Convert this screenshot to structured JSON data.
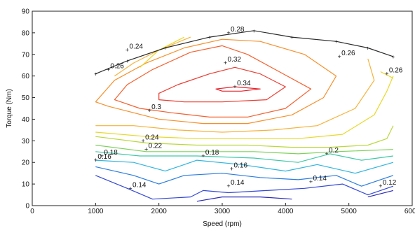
{
  "chart_data": {
    "type": "contour",
    "title": "",
    "xlabel": "Speed (rpm)",
    "ylabel": "Torque (Nm)",
    "xlim": [
      0,
      6000
    ],
    "ylim": [
      0,
      90
    ],
    "xticks": [
      "0",
      "1000",
      "2000",
      "3000",
      "4000",
      "5000",
      "6000"
    ],
    "yticks": [
      "0",
      "10",
      "20",
      "30",
      "40",
      "50",
      "60",
      "70",
      "80",
      "90"
    ],
    "grid": false,
    "max_torque_curve": {
      "color": "#2b2b2b",
      "points": [
        [
          1000,
          61
        ],
        [
          1500,
          67
        ],
        [
          2100,
          73
        ],
        [
          2800,
          78
        ],
        [
          3500,
          81
        ],
        [
          4100,
          78
        ],
        [
          4800,
          76
        ],
        [
          5300,
          73
        ],
        [
          5700,
          69
        ]
      ]
    },
    "contours": [
      {
        "level": 0.34,
        "color": "#e8202a",
        "closed": true,
        "points": [
          [
            2900,
            54
          ],
          [
            3200,
            55
          ],
          [
            3600,
            54
          ],
          [
            3300,
            53
          ],
          [
            3000,
            53
          ]
        ]
      },
      {
        "level": 0.33,
        "color": "#ec3b2f",
        "closed": true,
        "points": [
          [
            2000,
            52
          ],
          [
            2300,
            56
          ],
          [
            2800,
            61
          ],
          [
            3200,
            64
          ],
          [
            3600,
            61
          ],
          [
            4000,
            55
          ],
          [
            3700,
            49
          ],
          [
            3000,
            48
          ],
          [
            2400,
            48
          ],
          [
            2000,
            49
          ]
        ]
      },
      {
        "level": 0.32,
        "color": "#f4612f",
        "closed": false,
        "points": [
          [
            1700,
            45
          ],
          [
            1300,
            49
          ],
          [
            1500,
            56
          ],
          [
            1900,
            63
          ],
          [
            2500,
            71
          ],
          [
            3000,
            74
          ],
          [
            3400,
            70
          ],
          [
            3900,
            62
          ],
          [
            4400,
            54
          ],
          [
            4000,
            45
          ],
          [
            3400,
            41
          ],
          [
            2800,
            41
          ],
          [
            2200,
            43
          ],
          [
            1700,
            45
          ]
        ]
      },
      {
        "level": 0.3,
        "color": "#f6902c",
        "closed": false,
        "points": [
          [
            1000,
            48
          ],
          [
            1300,
            58
          ],
          [
            1800,
            66
          ],
          [
            2400,
            73
          ],
          [
            3000,
            77
          ],
          [
            3600,
            76
          ],
          [
            4300,
            70
          ],
          [
            4800,
            60
          ],
          [
            4600,
            50
          ],
          [
            4100,
            42
          ],
          [
            3400,
            38
          ],
          [
            2700,
            38
          ],
          [
            2000,
            40
          ],
          [
            1200,
            46
          ],
          [
            1000,
            48
          ]
        ]
      },
      {
        "level": 0.28,
        "color": "#f6b23a",
        "closed": false,
        "points": [
          [
            1000,
            37
          ],
          [
            1600,
            37
          ],
          [
            2300,
            35
          ],
          [
            3000,
            34
          ],
          [
            3800,
            35
          ],
          [
            4500,
            37
          ],
          [
            5100,
            45
          ],
          [
            5400,
            58
          ],
          [
            5300,
            68
          ]
        ]
      },
      {
        "level": 0.26,
        "color": "#e8d829",
        "closed": false,
        "points": [
          [
            1000,
            34
          ],
          [
            1800,
            32
          ],
          [
            2600,
            31
          ],
          [
            3400,
            31
          ],
          [
            4200,
            31
          ],
          [
            4900,
            33
          ],
          [
            5400,
            42
          ],
          [
            5600,
            53
          ],
          [
            5700,
            60
          ]
        ]
      },
      {
        "level": 0.28,
        "color": "#f6b23a",
        "closed": false,
        "points": [
          [
            1300,
            60
          ],
          [
            1600,
            66
          ],
          [
            2000,
            72
          ],
          [
            2500,
            78
          ]
        ]
      },
      {
        "level": 0.26,
        "color": "#e8d829",
        "closed": false,
        "points": [
          [
            1700,
            64
          ],
          [
            2000,
            72
          ],
          [
            2400,
            78
          ]
        ]
      },
      {
        "level": 0.24,
        "color": "#b9d83a",
        "closed": false,
        "points": [
          [
            1000,
            32
          ],
          [
            1800,
            29
          ],
          [
            2600,
            28
          ],
          [
            3400,
            28
          ],
          [
            4100,
            27
          ],
          [
            4700,
            27
          ],
          [
            5300,
            28
          ],
          [
            5600,
            31
          ],
          [
            5700,
            37
          ]
        ]
      },
      {
        "level": 0.22,
        "color": "#7ed25c",
        "closed": false,
        "points": [
          [
            1000,
            28
          ],
          [
            1800,
            25
          ],
          [
            2700,
            25
          ],
          [
            3500,
            25
          ],
          [
            4200,
            24
          ],
          [
            4800,
            25
          ],
          [
            5700,
            26
          ]
        ]
      },
      {
        "level": 0.2,
        "color": "#3fc9a6",
        "closed": false,
        "points": [
          [
            1000,
            25
          ],
          [
            1700,
            23
          ],
          [
            2600,
            23
          ],
          [
            3500,
            22
          ],
          [
            4200,
            20
          ],
          [
            4700,
            24
          ],
          [
            5200,
            21
          ],
          [
            5700,
            23
          ]
        ]
      },
      {
        "level": 0.18,
        "color": "#2fb5e0",
        "closed": false,
        "points": [
          [
            1000,
            21
          ],
          [
            1600,
            20
          ],
          [
            2100,
            16
          ],
          [
            2600,
            21
          ],
          [
            3300,
            19
          ],
          [
            4000,
            16
          ],
          [
            4500,
            19
          ],
          [
            5100,
            15
          ],
          [
            5700,
            20
          ]
        ]
      },
      {
        "level": 0.16,
        "color": "#2a7de0",
        "closed": false,
        "points": [
          [
            1000,
            18
          ],
          [
            1600,
            14
          ],
          [
            2000,
            10
          ],
          [
            2400,
            14
          ],
          [
            3000,
            15
          ],
          [
            3600,
            13
          ],
          [
            4200,
            12
          ],
          [
            4800,
            14
          ],
          [
            5200,
            9
          ],
          [
            5700,
            14
          ]
        ]
      },
      {
        "level": 0.14,
        "color": "#3348d6",
        "closed": false,
        "points": [
          [
            1000,
            14
          ],
          [
            1500,
            8
          ],
          [
            1900,
            3
          ],
          [
            2500,
            4
          ],
          [
            2700,
            7
          ],
          [
            3100,
            6
          ],
          [
            3700,
            7
          ],
          [
            4300,
            8
          ],
          [
            4900,
            10
          ],
          [
            5300,
            5
          ],
          [
            5700,
            9
          ]
        ]
      },
      {
        "level": 0.12,
        "color": "#2a2ab8",
        "closed": false,
        "points": [
          [
            2600,
            2
          ],
          [
            3000,
            4
          ],
          [
            3600,
            4
          ],
          [
            4100,
            3
          ]
        ]
      },
      {
        "level": 0.12,
        "color": "#2a2ab8",
        "closed": false,
        "points": [
          [
            5300,
            4
          ],
          [
            5700,
            7
          ]
        ]
      },
      {
        "level": 0.26,
        "color": "#e8d829",
        "closed": false,
        "points": [
          [
            5500,
            62
          ],
          [
            5700,
            59
          ]
        ]
      }
    ],
    "contour_labels": [
      {
        "text": "0.24",
        "x": 1500,
        "y": 72
      },
      {
        "text": "0.26",
        "x": 1200,
        "y": 63
      },
      {
        "text": "0.28",
        "x": 3100,
        "y": 80
      },
      {
        "text": "0.32",
        "x": 3050,
        "y": 66
      },
      {
        "text": "0.34",
        "x": 3200,
        "y": 55
      },
      {
        "text": "0.26",
        "x": 4850,
        "y": 69
      },
      {
        "text": "0.26",
        "x": 5600,
        "y": 61
      },
      {
        "text": "0.3",
        "x": 1850,
        "y": 44
      },
      {
        "text": "0.24",
        "x": 1750,
        "y": 30
      },
      {
        "text": "0.22",
        "x": 1800,
        "y": 26
      },
      {
        "text": "0.18",
        "x": 1100,
        "y": 23
      },
      {
        "text": "0.16",
        "x": 1000,
        "y": 21
      },
      {
        "text": "0.18",
        "x": 2700,
        "y": 23
      },
      {
        "text": "0.16",
        "x": 3150,
        "y": 17
      },
      {
        "text": "0.2",
        "x": 4650,
        "y": 24
      },
      {
        "text": "0.14",
        "x": 1550,
        "y": 8
      },
      {
        "text": "0.14",
        "x": 3100,
        "y": 9
      },
      {
        "text": "0.14",
        "x": 4400,
        "y": 11
      },
      {
        "text": "0.12",
        "x": 5500,
        "y": 9
      }
    ]
  }
}
